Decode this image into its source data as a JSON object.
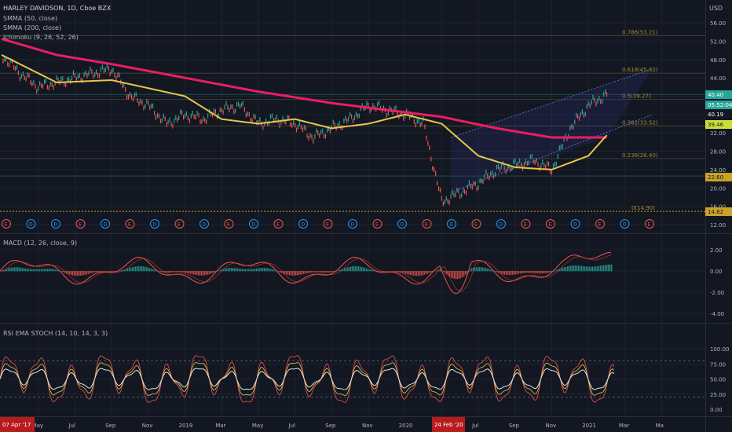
{
  "header": {
    "title": "HARLEY DAVIDSON, 1D, Cboe BZX",
    "indicators": [
      "SMMA (50, close)",
      "SMMA (200, close)",
      "Ichimoku (9, 26, 52, 26)"
    ]
  },
  "currency": "USD",
  "price_ticks": [
    "56.00",
    "52.00",
    "48.00",
    "44.00",
    "40.00",
    "36.00",
    "32.00",
    "28.00",
    "24.00",
    "20.00",
    "16.00",
    "12.00"
  ],
  "price_badges": [
    {
      "label": "40.40",
      "bg": "#26a69a",
      "fg": "#ffffff"
    },
    {
      "label": "05:52:04",
      "bg": "#26a69a",
      "fg": "#ffffff"
    },
    {
      "label": "40.19",
      "bg": "#131722",
      "fg": "#ffffff"
    },
    {
      "label": "39.46",
      "bg": "#cddc39",
      "fg": "#131722"
    },
    {
      "label": "22.60",
      "bg": "#c9a227",
      "fg": "#131722"
    },
    {
      "label": "14.82",
      "bg": "#c9a227",
      "fg": "#131722"
    }
  ],
  "fib_levels": [
    {
      "label": "0.786(53.21)",
      "price": 53.21
    },
    {
      "label": "0.618(45.02)",
      "price": 45.02
    },
    {
      "label": "0.5(39.27)",
      "price": 39.27
    },
    {
      "label": "0.382(33.52)",
      "price": 33.52
    },
    {
      "label": "0.236(26.40)",
      "price": 26.4
    },
    {
      "label": "0(14.90)",
      "price": 14.9
    }
  ],
  "macd": {
    "title": "MACD (12, 26, close, 9)",
    "ticks": [
      "2.00",
      "0.00",
      "-2.00",
      "-4.00"
    ]
  },
  "rsi": {
    "title": "RSI EMA STOCH (14, 10, 14, 3, 3)",
    "ticks": [
      "100.00",
      "75.00",
      "50.00",
      "25.00",
      "0.00"
    ]
  },
  "time_axis": {
    "labels": [
      "May",
      "Jul",
      "Sep",
      "Nov",
      "2019",
      "Mar",
      "May",
      "Jul",
      "Sep",
      "Nov",
      "2020",
      "May",
      "Jul",
      "Sep",
      "Nov",
      "2021",
      "Mar",
      "Ma"
    ],
    "start_badge": "07 Apr '17",
    "mid_badge": "24 Feb '20"
  },
  "events": [
    "E",
    "D",
    "D",
    "E",
    "D",
    "E",
    "D",
    "E",
    "D",
    "E",
    "D",
    "E",
    "D",
    "E",
    "D",
    "E",
    "D",
    "E",
    "D",
    "E",
    "D",
    "E",
    "E",
    "D",
    "E",
    "D",
    "E"
  ],
  "chart_data": {
    "type": "line",
    "x_range": [
      "2018-03",
      "2021-06"
    ],
    "ylim": [
      12,
      58
    ],
    "series": [
      {
        "name": "SMMA (200, close)",
        "color": "#e91e63",
        "x": [
          "2018-03",
          "2018-06",
          "2018-09",
          "2019-01",
          "2019-05",
          "2019-09",
          "2020-01",
          "2020-03",
          "2020-06",
          "2020-09",
          "2020-12"
        ],
        "values": [
          52.5,
          49,
          47,
          44,
          41,
          38.5,
          36.5,
          35.5,
          33,
          31,
          31
        ]
      },
      {
        "name": "SMMA (50, close)",
        "color": "#e6c74c",
        "x": [
          "2018-03",
          "2018-06",
          "2018-09",
          "2019-01",
          "2019-03",
          "2019-05",
          "2019-07",
          "2019-09",
          "2019-11",
          "2020-01",
          "2020-03",
          "2020-05",
          "2020-07",
          "2020-09",
          "2020-11",
          "2020-12"
        ],
        "values": [
          49,
          43,
          43.5,
          40,
          35,
          34,
          35,
          33,
          34,
          36,
          34,
          27,
          24.5,
          24,
          27,
          31.5
        ]
      },
      {
        "name": "Price",
        "color": "#26a69a",
        "x": [
          "2018-03",
          "2018-04",
          "2018-05",
          "2018-06",
          "2018-07",
          "2018-08",
          "2018-09",
          "2018-10",
          "2018-11",
          "2018-12",
          "2019-01",
          "2019-02",
          "2019-03",
          "2019-04",
          "2019-05",
          "2019-06",
          "2019-07",
          "2019-08",
          "2019-09",
          "2019-10",
          "2019-11",
          "2019-12",
          "2020-01",
          "2020-02",
          "2020-03",
          "2020-04",
          "2020-05",
          "2020-06",
          "2020-07",
          "2020-08",
          "2020-09",
          "2020-10",
          "2020-11",
          "2020-12"
        ],
        "values": [
          49,
          45,
          42,
          43,
          44,
          45,
          46,
          40,
          38,
          34,
          36,
          35,
          37,
          38,
          34,
          35,
          34,
          31,
          33,
          35,
          38,
          37,
          36,
          34,
          17,
          19,
          21,
          24,
          25,
          26,
          24,
          33,
          38,
          40.4
        ]
      }
    ]
  }
}
